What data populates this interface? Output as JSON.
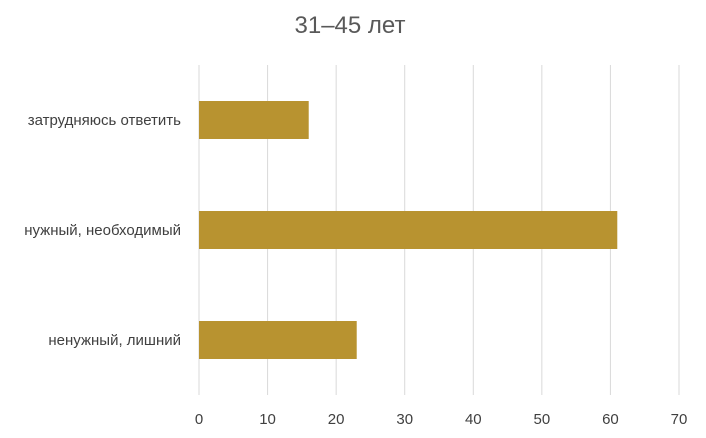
{
  "chart_data": {
    "type": "bar",
    "orientation": "horizontal",
    "title": "31–45 лет",
    "categories": [
      "затрудняюсь ответить",
      "нужный, необходимый",
      "ненужный, лишний"
    ],
    "values": [
      16,
      61,
      23
    ],
    "xlim": [
      0,
      70
    ],
    "x_ticks": [
      "0",
      "10",
      "20",
      "30",
      "40",
      "50",
      "60",
      "70"
    ],
    "grid": "vertical",
    "legend": "none",
    "bar_color": "#B89330"
  }
}
